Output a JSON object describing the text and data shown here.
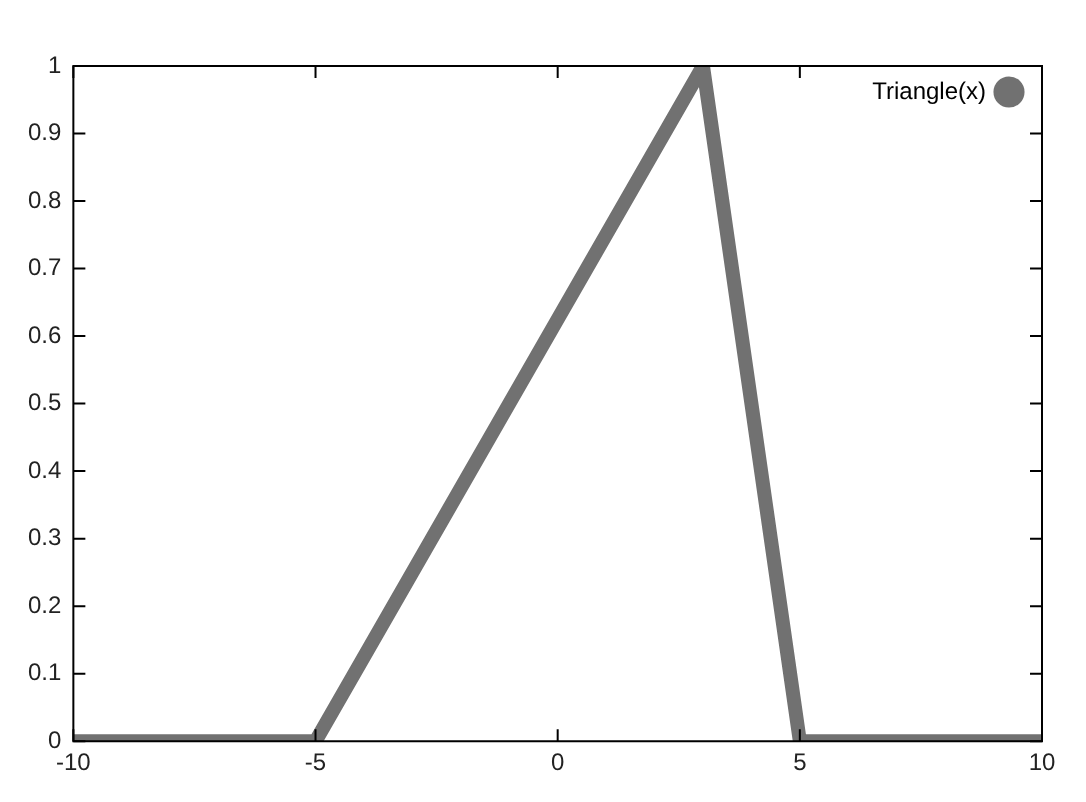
{
  "chart_data": {
    "type": "line",
    "x": [
      -10,
      -5,
      3,
      5,
      10
    ],
    "series": [
      {
        "name": "Triangle(x)",
        "color": "#717171",
        "values": [
          0,
          0,
          1,
          0,
          0
        ]
      }
    ],
    "xlim": [
      -10,
      10
    ],
    "xticks": [
      -10,
      -5,
      0,
      5,
      10
    ],
    "ylim": [
      0,
      1
    ],
    "yticks": [
      0,
      0.1,
      0.2,
      0.3,
      0.4,
      0.5,
      0.6,
      0.7,
      0.8,
      0.9,
      1
    ],
    "grid": false,
    "legend": "top right",
    "marker": "none",
    "line_style": "solid"
  }
}
